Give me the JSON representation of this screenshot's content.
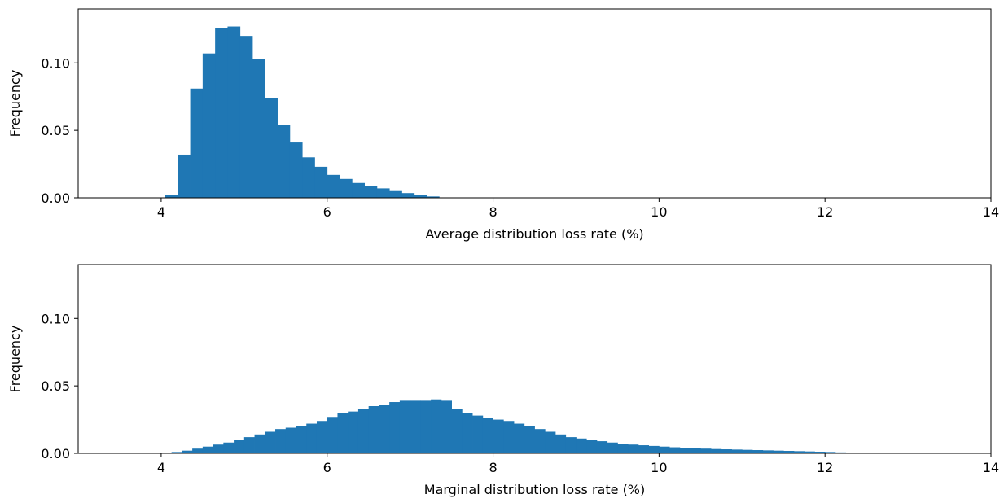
{
  "chart_data": [
    {
      "type": "bar",
      "xlabel": "Average distribution loss rate (%)",
      "ylabel": "Frequency",
      "xlim": [
        3,
        14
      ],
      "ylim": [
        0,
        0.14
      ],
      "xticks": [
        "4",
        "6",
        "8",
        "10",
        "12",
        "14"
      ],
      "yticks": [
        "0.00",
        "0.05",
        "0.10"
      ],
      "grid": false,
      "bar_color": "#1f77b4",
      "bin_width": 0.15,
      "x": [
        4.05,
        4.2,
        4.35,
        4.5,
        4.65,
        4.8,
        4.95,
        5.1,
        5.25,
        5.4,
        5.55,
        5.7,
        5.85,
        6.0,
        6.15,
        6.3,
        6.45,
        6.6,
        6.75,
        6.9,
        7.05,
        7.2
      ],
      "values": [
        0.002,
        0.032,
        0.081,
        0.107,
        0.126,
        0.127,
        0.12,
        0.103,
        0.074,
        0.054,
        0.041,
        0.03,
        0.023,
        0.017,
        0.014,
        0.011,
        0.009,
        0.007,
        0.005,
        0.0035,
        0.002,
        0.001
      ]
    },
    {
      "type": "bar",
      "xlabel": "Marginal distribution loss rate (%)",
      "ylabel": "Frequency",
      "xlim": [
        3,
        14
      ],
      "ylim": [
        0,
        0.14
      ],
      "xticks": [
        "4",
        "6",
        "8",
        "10",
        "12",
        "14"
      ],
      "yticks": [
        "0.00",
        "0.05",
        "0.10"
      ],
      "grid": false,
      "bar_color": "#1f77b4",
      "bin_width": 0.125,
      "x": [
        4.0,
        4.125,
        4.25,
        4.375,
        4.5,
        4.625,
        4.75,
        4.875,
        5.0,
        5.125,
        5.25,
        5.375,
        5.5,
        5.625,
        5.75,
        5.875,
        6.0,
        6.125,
        6.25,
        6.375,
        6.5,
        6.625,
        6.75,
        6.875,
        7.0,
        7.125,
        7.25,
        7.375,
        7.5,
        7.625,
        7.75,
        7.875,
        8.0,
        8.125,
        8.25,
        8.375,
        8.5,
        8.625,
        8.75,
        8.875,
        9.0,
        9.125,
        9.25,
        9.375,
        9.5,
        9.625,
        9.75,
        9.875,
        10.0,
        10.125,
        10.25,
        10.375,
        10.5,
        10.625,
        10.75,
        10.875,
        11.0,
        11.125,
        11.25,
        11.375,
        11.5,
        11.625,
        11.75,
        11.875,
        12.0,
        12.125,
        12.25,
        12.375
      ],
      "values": [
        0.0005,
        0.001,
        0.002,
        0.0035,
        0.005,
        0.0065,
        0.008,
        0.01,
        0.012,
        0.014,
        0.016,
        0.018,
        0.019,
        0.02,
        0.022,
        0.024,
        0.027,
        0.03,
        0.031,
        0.033,
        0.035,
        0.036,
        0.038,
        0.039,
        0.039,
        0.039,
        0.04,
        0.039,
        0.033,
        0.03,
        0.028,
        0.026,
        0.025,
        0.024,
        0.022,
        0.02,
        0.018,
        0.016,
        0.014,
        0.012,
        0.011,
        0.01,
        0.009,
        0.008,
        0.007,
        0.0065,
        0.006,
        0.0055,
        0.005,
        0.0045,
        0.004,
        0.0038,
        0.0035,
        0.0032,
        0.003,
        0.0028,
        0.0026,
        0.0024,
        0.0022,
        0.002,
        0.0018,
        0.0016,
        0.0014,
        0.0012,
        0.001,
        0.0007,
        0.0005,
        0.0003
      ]
    }
  ]
}
